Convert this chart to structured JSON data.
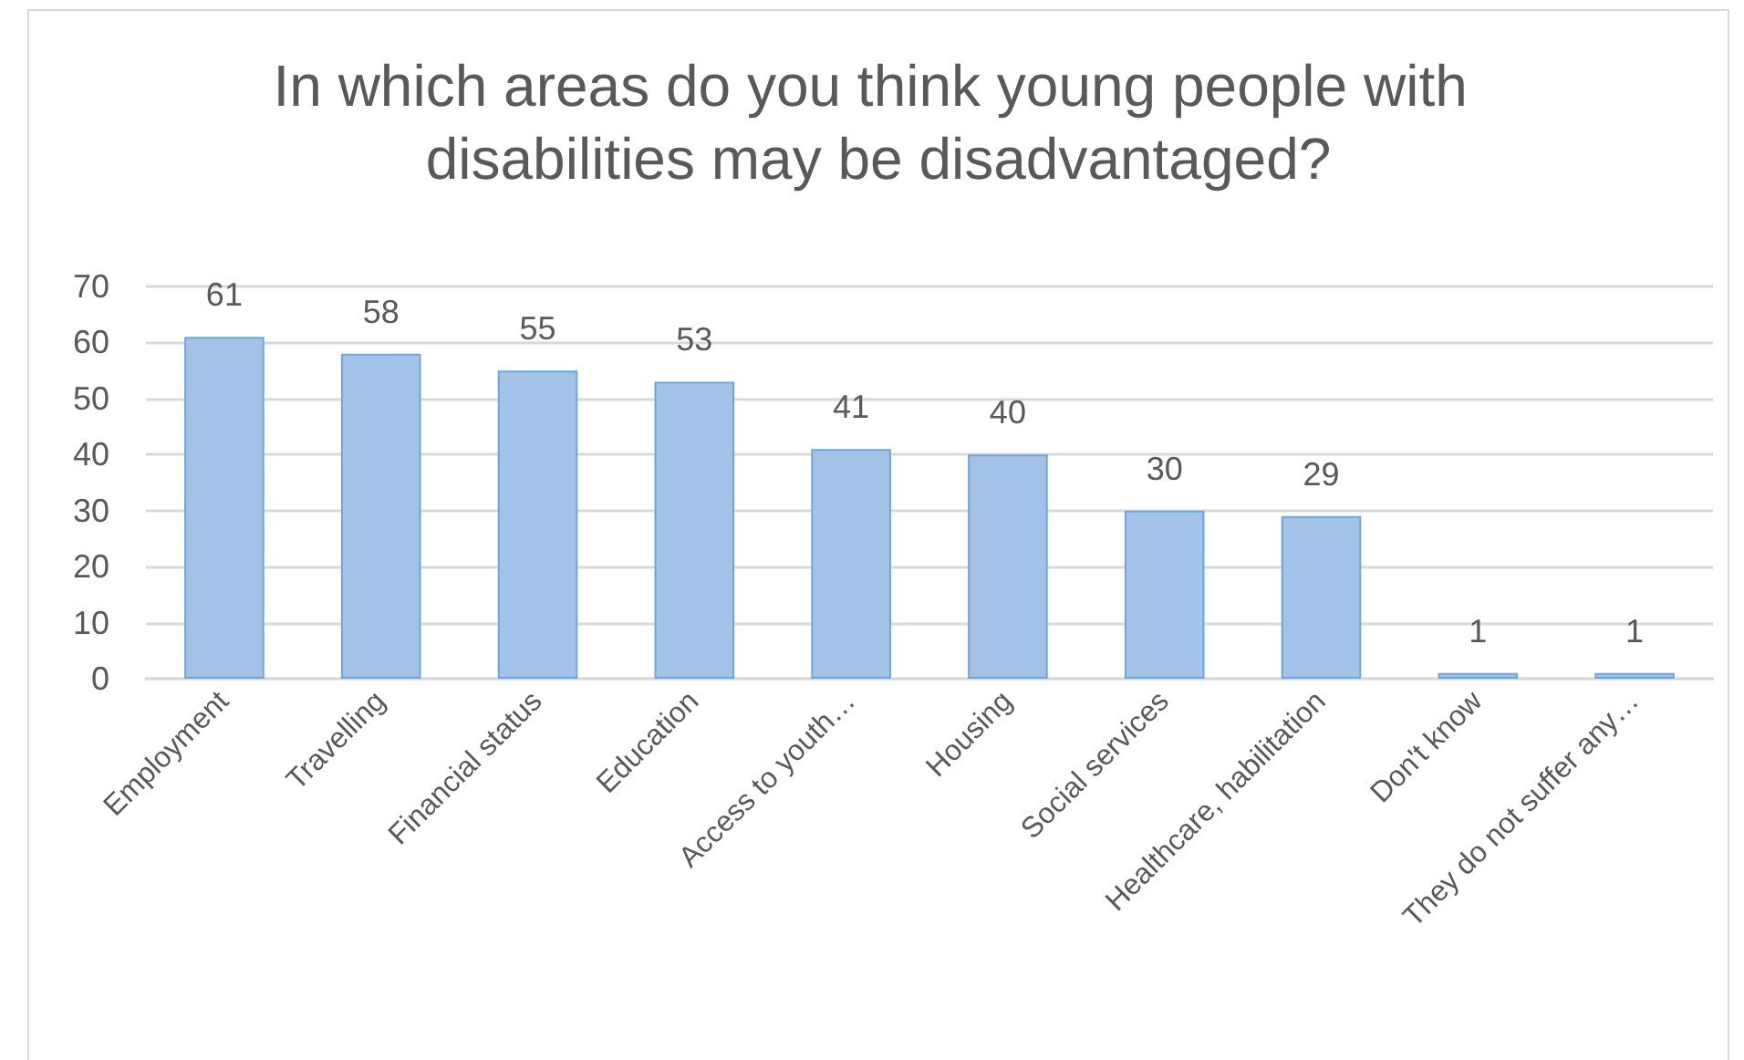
{
  "chart_data": {
    "type": "bar",
    "title": "In which areas do you think young people with disabilities may be disadvantaged?",
    "categories": [
      "Employment",
      "Travelling",
      "Financial status",
      "Education",
      "Access to youth…",
      "Housing",
      "Social services",
      "Healthcare, habilitation",
      "Don't know",
      "They do not suffer any…"
    ],
    "values": [
      61,
      58,
      55,
      53,
      41,
      40,
      30,
      29,
      1,
      1
    ],
    "color": "#a3c2e7",
    "ylim": [
      0,
      70
    ],
    "yticks": [
      0,
      10,
      20,
      30,
      40,
      50,
      60,
      70
    ],
    "grid": "y",
    "data_labels": true
  }
}
